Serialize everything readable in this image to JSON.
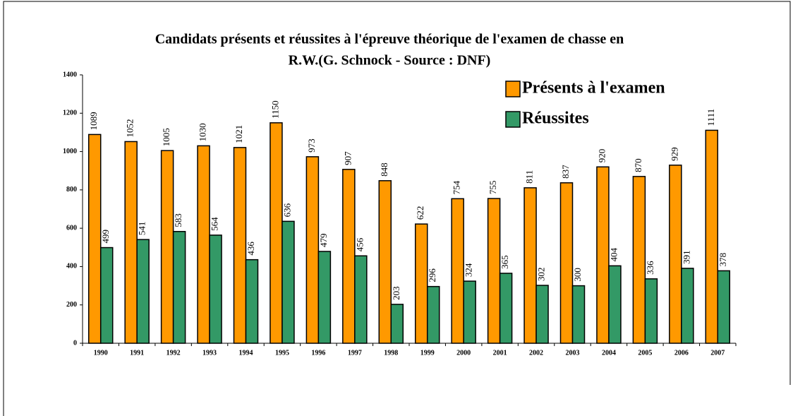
{
  "chart_data": {
    "type": "bar",
    "title": [
      "Candidats présents et réussites à l'épreuve théorique de l'examen  de chasse en",
      "R.W.(G. Schnock - Source : DNF)"
    ],
    "categories": [
      "1990",
      "1991",
      "1992",
      "1993",
      "1994",
      "1995",
      "1996",
      "1997",
      "1998",
      "1999",
      "2000",
      "2001",
      "2002",
      "2003",
      "2004",
      "2005",
      "2006",
      "2007"
    ],
    "series": [
      {
        "name": "Présents à l'examen",
        "color": "#ff9900",
        "values": [
          1089,
          1052,
          1005,
          1030,
          1021,
          1150,
          973,
          907,
          848,
          622,
          754,
          755,
          811,
          837,
          920,
          870,
          929,
          1111
        ]
      },
      {
        "name": "Réussites",
        "color": "#339966",
        "values": [
          499,
          541,
          583,
          564,
          436,
          636,
          479,
          456,
          203,
          296,
          324,
          365,
          302,
          300,
          404,
          336,
          391,
          378
        ]
      }
    ],
    "ylim": [
      0,
      1400
    ],
    "yticks": [
      0,
      200,
      400,
      600,
      800,
      1000,
      1200,
      1400
    ],
    "grid": false,
    "legend": "top-right"
  }
}
